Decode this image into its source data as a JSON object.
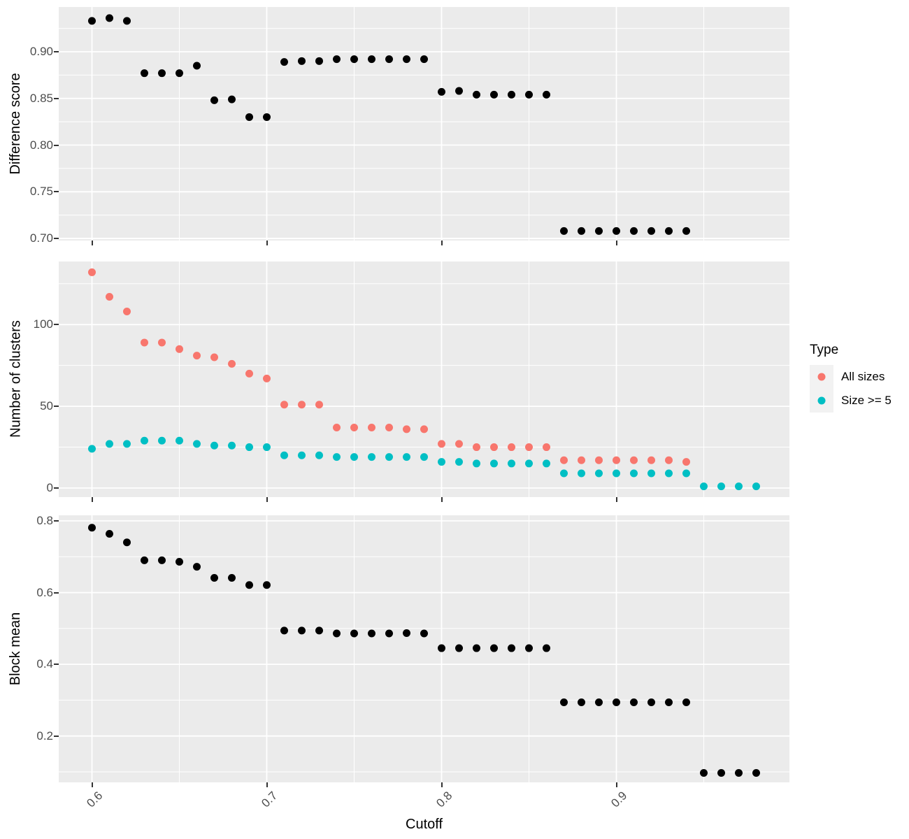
{
  "figure": {
    "background": "#FFFFFF",
    "panel_background": "#EBEBEB",
    "gridline_color": "#FFFFFF",
    "tick_mark_color": "#333333",
    "tick_label_color": "#4D4D4D",
    "axis_title_color": "#000000"
  },
  "chart_data": {
    "type": "scatter",
    "title": "",
    "xlabel": "Cutoff",
    "xlim": [
      0.581,
      0.999
    ],
    "xticks": {
      "values": [
        0.6,
        0.7,
        0.8,
        0.9
      ],
      "labels": [
        "0.6",
        "0.7",
        "0.8",
        "0.9"
      ]
    },
    "grid": true,
    "legend": {
      "title": "Type",
      "position": "right",
      "entries": [
        {
          "label": "All sizes",
          "color": "#F8766D"
        },
        {
          "label": "Size >= 5",
          "color": "#00BFC4"
        }
      ]
    },
    "panels": [
      {
        "ylabel": "Difference score",
        "ylim": [
          0.6978,
          0.9479
        ],
        "yticks": {
          "values": [
            0.7,
            0.75,
            0.8,
            0.85,
            0.9
          ],
          "labels": [
            "0.70",
            "0.75",
            "0.80",
            "0.85",
            "0.90"
          ]
        },
        "series": [
          {
            "color": "#000000",
            "points": [
              [
                0.6,
                0.933
              ],
              [
                0.61,
                0.936
              ],
              [
                0.62,
                0.933
              ],
              [
                0.63,
                0.877
              ],
              [
                0.64,
                0.877
              ],
              [
                0.65,
                0.877
              ],
              [
                0.66,
                0.885
              ],
              [
                0.67,
                0.848
              ],
              [
                0.68,
                0.849
              ],
              [
                0.69,
                0.83
              ],
              [
                0.7,
                0.83
              ],
              [
                0.71,
                0.889
              ],
              [
                0.72,
                0.89
              ],
              [
                0.73,
                0.89
              ],
              [
                0.74,
                0.892
              ],
              [
                0.75,
                0.892
              ],
              [
                0.76,
                0.892
              ],
              [
                0.77,
                0.892
              ],
              [
                0.78,
                0.892
              ],
              [
                0.79,
                0.892
              ],
              [
                0.8,
                0.857
              ],
              [
                0.81,
                0.858
              ],
              [
                0.82,
                0.854
              ],
              [
                0.83,
                0.854
              ],
              [
                0.84,
                0.854
              ],
              [
                0.85,
                0.854
              ],
              [
                0.86,
                0.854
              ],
              [
                0.87,
                0.708
              ],
              [
                0.88,
                0.708
              ],
              [
                0.89,
                0.708
              ],
              [
                0.9,
                0.708
              ],
              [
                0.91,
                0.708
              ],
              [
                0.92,
                0.708
              ],
              [
                0.93,
                0.708
              ],
              [
                0.94,
                0.708
              ]
            ]
          }
        ]
      },
      {
        "ylabel": "Number of clusters",
        "ylim": [
          -5.56,
          138.6
        ],
        "yticks": {
          "values": [
            0,
            50,
            100
          ],
          "labels": [
            "0",
            "50",
            "100"
          ]
        },
        "series": [
          {
            "name": "All sizes",
            "color": "#F8766D",
            "points": [
              [
                0.6,
                132
              ],
              [
                0.61,
                117
              ],
              [
                0.62,
                108
              ],
              [
                0.63,
                89
              ],
              [
                0.64,
                89
              ],
              [
                0.65,
                85
              ],
              [
                0.66,
                81
              ],
              [
                0.67,
                80
              ],
              [
                0.68,
                76
              ],
              [
                0.69,
                70
              ],
              [
                0.7,
                67
              ],
              [
                0.71,
                51
              ],
              [
                0.72,
                51
              ],
              [
                0.73,
                51
              ],
              [
                0.74,
                37
              ],
              [
                0.75,
                37
              ],
              [
                0.76,
                37
              ],
              [
                0.77,
                37
              ],
              [
                0.78,
                36
              ],
              [
                0.79,
                36
              ],
              [
                0.8,
                27
              ],
              [
                0.81,
                27
              ],
              [
                0.82,
                25
              ],
              [
                0.83,
                25
              ],
              [
                0.84,
                25
              ],
              [
                0.85,
                25
              ],
              [
                0.86,
                25
              ],
              [
                0.87,
                17
              ],
              [
                0.88,
                17
              ],
              [
                0.89,
                17
              ],
              [
                0.9,
                17
              ],
              [
                0.91,
                17
              ],
              [
                0.92,
                17
              ],
              [
                0.93,
                17
              ],
              [
                0.94,
                16
              ]
            ]
          },
          {
            "name": "Size >= 5",
            "color": "#00BFC4",
            "points": [
              [
                0.6,
                24
              ],
              [
                0.61,
                27
              ],
              [
                0.62,
                27
              ],
              [
                0.63,
                29
              ],
              [
                0.64,
                29
              ],
              [
                0.65,
                29
              ],
              [
                0.66,
                27
              ],
              [
                0.67,
                26
              ],
              [
                0.68,
                26
              ],
              [
                0.69,
                25
              ],
              [
                0.7,
                25
              ],
              [
                0.71,
                20
              ],
              [
                0.72,
                20
              ],
              [
                0.73,
                20
              ],
              [
                0.74,
                19
              ],
              [
                0.75,
                19
              ],
              [
                0.76,
                19
              ],
              [
                0.77,
                19
              ],
              [
                0.78,
                19
              ],
              [
                0.79,
                19
              ],
              [
                0.8,
                16
              ],
              [
                0.81,
                16
              ],
              [
                0.82,
                15
              ],
              [
                0.83,
                15
              ],
              [
                0.84,
                15
              ],
              [
                0.85,
                15
              ],
              [
                0.86,
                15
              ],
              [
                0.87,
                9
              ],
              [
                0.88,
                9
              ],
              [
                0.89,
                9
              ],
              [
                0.9,
                9
              ],
              [
                0.91,
                9
              ],
              [
                0.92,
                9
              ],
              [
                0.93,
                9
              ],
              [
                0.94,
                9
              ],
              [
                0.95,
                1
              ],
              [
                0.96,
                1
              ],
              [
                0.97,
                1
              ],
              [
                0.98,
                1
              ]
            ]
          }
        ]
      },
      {
        "ylabel": "Block mean",
        "ylim": [
          0.0707,
          0.8156
        ],
        "yticks": {
          "values": [
            0.2,
            0.4,
            0.6,
            0.8
          ],
          "labels": [
            "0.2",
            "0.4",
            "0.6",
            "0.8"
          ]
        },
        "series": [
          {
            "color": "#000000",
            "points": [
              [
                0.6,
                0.781
              ],
              [
                0.61,
                0.764
              ],
              [
                0.62,
                0.74
              ],
              [
                0.63,
                0.69
              ],
              [
                0.64,
                0.69
              ],
              [
                0.65,
                0.686
              ],
              [
                0.66,
                0.672
              ],
              [
                0.67,
                0.641
              ],
              [
                0.68,
                0.641
              ],
              [
                0.69,
                0.621
              ],
              [
                0.7,
                0.621
              ],
              [
                0.71,
                0.494
              ],
              [
                0.72,
                0.494
              ],
              [
                0.73,
                0.494
              ],
              [
                0.74,
                0.486
              ],
              [
                0.75,
                0.486
              ],
              [
                0.76,
                0.486
              ],
              [
                0.77,
                0.486
              ],
              [
                0.78,
                0.487
              ],
              [
                0.79,
                0.486
              ],
              [
                0.8,
                0.445
              ],
              [
                0.81,
                0.445
              ],
              [
                0.82,
                0.445
              ],
              [
                0.83,
                0.445
              ],
              [
                0.84,
                0.445
              ],
              [
                0.85,
                0.445
              ],
              [
                0.86,
                0.445
              ],
              [
                0.87,
                0.294
              ],
              [
                0.88,
                0.294
              ],
              [
                0.89,
                0.294
              ],
              [
                0.9,
                0.294
              ],
              [
                0.91,
                0.294
              ],
              [
                0.92,
                0.294
              ],
              [
                0.93,
                0.294
              ],
              [
                0.94,
                0.294
              ],
              [
                0.95,
                0.097
              ],
              [
                0.96,
                0.097
              ],
              [
                0.97,
                0.097
              ],
              [
                0.98,
                0.097
              ]
            ]
          }
        ]
      }
    ]
  }
}
